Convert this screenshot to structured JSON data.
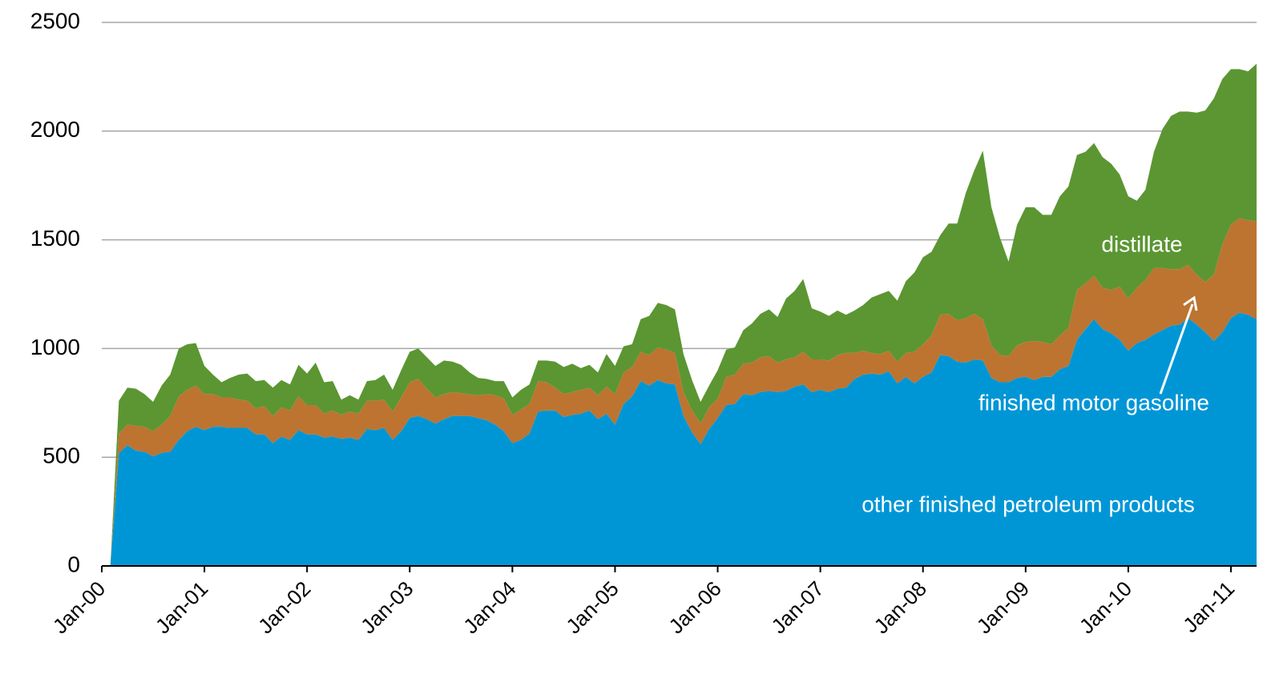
{
  "chart_data": {
    "type": "stacked-area",
    "categories": [
      "Jan-00",
      null,
      null,
      null,
      null,
      null,
      null,
      null,
      null,
      null,
      null,
      null,
      "Jan-01",
      null,
      null,
      null,
      null,
      null,
      null,
      null,
      null,
      null,
      null,
      null,
      "Jan-02",
      null,
      null,
      null,
      null,
      null,
      null,
      null,
      null,
      null,
      null,
      null,
      "Jan-03",
      null,
      null,
      null,
      null,
      null,
      null,
      null,
      null,
      null,
      null,
      null,
      "Jan-04",
      null,
      null,
      null,
      null,
      null,
      null,
      null,
      null,
      null,
      null,
      null,
      "Jan-05",
      null,
      null,
      null,
      null,
      null,
      null,
      null,
      null,
      null,
      null,
      null,
      "Jan-06",
      null,
      null,
      null,
      null,
      null,
      null,
      null,
      null,
      null,
      null,
      null,
      "Jan-07",
      null,
      null,
      null,
      null,
      null,
      null,
      null,
      null,
      null,
      null,
      null,
      "Jan-08",
      null,
      null,
      null,
      null,
      null,
      null,
      null,
      null,
      null,
      null,
      null,
      "Jan-09",
      null,
      null,
      null,
      null,
      null,
      null,
      null,
      null,
      null,
      null,
      null,
      "Jan-10",
      null,
      null,
      null,
      null,
      null,
      null,
      null,
      null,
      null,
      null,
      null,
      "Jan-11",
      null,
      null,
      null
    ],
    "series": [
      {
        "name": "other finished petroleum products",
        "color": "#0096d6",
        "values": [
          null,
          0,
          520,
          555,
          530,
          525,
          505,
          520,
          525,
          580,
          620,
          640,
          625,
          640,
          640,
          635,
          635,
          635,
          605,
          605,
          565,
          595,
          580,
          625,
          605,
          605,
          590,
          595,
          585,
          590,
          580,
          630,
          625,
          635,
          580,
          620,
          680,
          690,
          675,
          655,
          675,
          690,
          690,
          690,
          680,
          670,
          650,
          620,
          565,
          580,
          610,
          710,
          715,
          715,
          685,
          695,
          700,
          715,
          675,
          700,
          650,
          745,
          780,
          850,
          830,
          855,
          840,
          835,
          690,
          615,
          560,
          630,
          680,
          740,
          745,
          790,
          785,
          800,
          805,
          800,
          805,
          825,
          835,
          800,
          810,
          800,
          815,
          820,
          860,
          880,
          885,
          880,
          895,
          840,
          870,
          840,
          870,
          890,
          970,
          965,
          940,
          935,
          950,
          945,
          865,
          845,
          845,
          865,
          870,
          855,
          870,
          870,
          905,
          920,
          1040,
          1090,
          1135,
          1090,
          1070,
          1040,
          990,
          1025,
          1040,
          1065,
          1085,
          1105,
          1110,
          1140,
          1110,
          1075,
          1035,
          1075,
          1140,
          1165,
          1155,
          1135
        ]
      },
      {
        "name": "finished motor gasoline",
        "color": "#bd7430",
        "values": [
          null,
          0,
          90,
          95,
          115,
          115,
          115,
          130,
          165,
          200,
          190,
          190,
          165,
          150,
          135,
          140,
          130,
          125,
          120,
          130,
          125,
          135,
          135,
          155,
          135,
          135,
          110,
          120,
          110,
          120,
          120,
          130,
          135,
          130,
          130,
          155,
          165,
          170,
          140,
          120,
          115,
          110,
          105,
          100,
          105,
          120,
          135,
          150,
          130,
          140,
          135,
          140,
          130,
          105,
          105,
          105,
          110,
          105,
          110,
          125,
          140,
          145,
          135,
          135,
          140,
          150,
          155,
          145,
          110,
          100,
          95,
          100,
          90,
          130,
          135,
          140,
          150,
          160,
          160,
          135,
          145,
          135,
          150,
          150,
          140,
          145,
          155,
          160,
          120,
          110,
          95,
          95,
          95,
          100,
          110,
          145,
          150,
          170,
          185,
          195,
          190,
          205,
          210,
          190,
          150,
          125,
          120,
          150,
          160,
          180,
          160,
          150,
          155,
          175,
          230,
          210,
          200,
          190,
          200,
          245,
          240,
          255,
          275,
          305,
          285,
          260,
          255,
          245,
          230,
          230,
          305,
          405,
          430,
          435,
          435,
          450
        ]
      },
      {
        "name": "distillate",
        "color": "#5b9632",
        "values": [
          null,
          0,
          150,
          170,
          170,
          150,
          135,
          180,
          190,
          220,
          210,
          195,
          130,
          90,
          70,
          90,
          115,
          125,
          125,
          120,
          130,
          125,
          120,
          145,
          145,
          195,
          145,
          135,
          70,
          75,
          65,
          90,
          95,
          115,
          100,
          125,
          140,
          140,
          145,
          145,
          155,
          140,
          130,
          100,
          80,
          70,
          65,
          80,
          80,
          90,
          90,
          95,
          100,
          120,
          125,
          130,
          100,
          105,
          105,
          150,
          130,
          120,
          105,
          150,
          180,
          205,
          205,
          200,
          175,
          140,
          100,
          100,
          130,
          125,
          125,
          155,
          180,
          200,
          215,
          210,
          280,
          305,
          335,
          235,
          220,
          205,
          205,
          175,
          195,
          210,
          255,
          275,
          275,
          280,
          330,
          365,
          400,
          385,
          365,
          415,
          445,
          575,
          660,
          775,
          635,
          540,
          435,
          555,
          620,
          615,
          585,
          595,
          640,
          650,
          620,
          605,
          610,
          600,
          580,
          515,
          470,
          400,
          415,
          535,
          640,
          705,
          725,
          705,
          745,
          790,
          810,
          760,
          715,
          685,
          685,
          725
        ]
      }
    ],
    "ylim": [
      0,
      2500
    ],
    "yticks": [
      0,
      500,
      1000,
      1500,
      2000,
      2500
    ],
    "grid": true
  }
}
